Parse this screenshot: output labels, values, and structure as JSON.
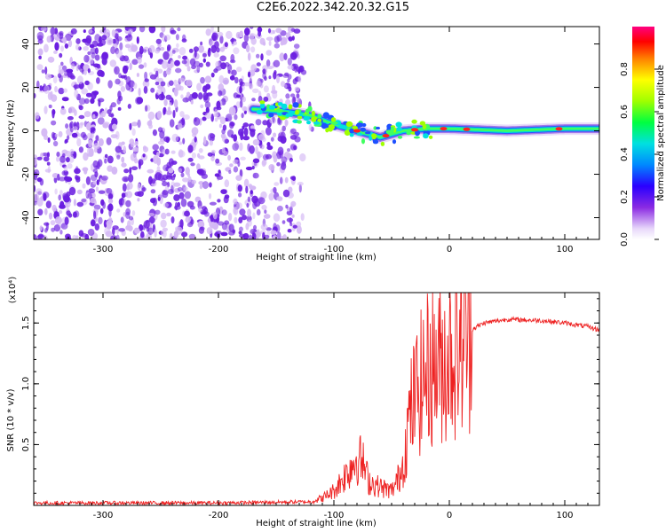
{
  "title": "C2E6.2022.342.20.32.G15",
  "colors": {
    "snr_line": "#ee2222",
    "axis": "#000000",
    "dots_primary": "#6a1de0",
    "dots_light": "#d4b8f5"
  },
  "chart_data": [
    {
      "type": "heatmap",
      "xlabel": "Height of straight line (km)",
      "ylabel": "Frequency (Hz)",
      "xlim": [
        -360,
        130
      ],
      "ylim": [
        -50,
        48
      ],
      "xticks": [
        -300,
        -200,
        -100,
        0,
        100
      ],
      "yticks": [
        -40,
        -20,
        0,
        20,
        40
      ],
      "colorbar": {
        "label": "Normalized spectral amplitude",
        "range": [
          0.0,
          1.0
        ],
        "ticks": [
          0.0,
          0.2,
          0.4,
          0.6,
          0.8
        ],
        "tick_labels": [
          "0.0",
          "0.2",
          "0.4",
          "0.6",
          "0.8"
        ],
        "colormap": "rainbow"
      },
      "signal_track": [
        {
          "x": -170,
          "y": 10
        },
        {
          "x": -145,
          "y": 9
        },
        {
          "x": -120,
          "y": 7
        },
        {
          "x": -100,
          "y": 3
        },
        {
          "x": -80,
          "y": 0
        },
        {
          "x": -60,
          "y": -3
        },
        {
          "x": -40,
          "y": 0
        },
        {
          "x": -20,
          "y": 1
        },
        {
          "x": 0,
          "y": 1
        },
        {
          "x": 50,
          "y": 0
        },
        {
          "x": 100,
          "y": 1
        },
        {
          "x": 130,
          "y": 1
        }
      ],
      "noise_region_x": [
        -360,
        -130
      ]
    },
    {
      "type": "line",
      "xlabel": "Height of straight line (km)",
      "ylabel": "SNR (10 * v/v)",
      "scale_label": "(x10⁴)",
      "xlim": [
        -360,
        130
      ],
      "ylim": [
        0,
        1.75
      ],
      "xticks": [
        -300,
        -200,
        -100,
        0,
        100
      ],
      "yticks": [
        0.5,
        1.0,
        1.5
      ],
      "ytick_labels": [
        "0.5",
        "1.0",
        "1.5"
      ],
      "series": [
        {
          "values_x": [
            -360,
            -300,
            -200,
            -120,
            -110,
            -100,
            -90,
            -80,
            -75,
            -70,
            -60,
            -50,
            -45,
            -40,
            -35,
            -30,
            -25,
            -20,
            -15,
            -10,
            -5,
            0,
            10,
            20,
            30,
            50,
            80,
            100,
            120,
            130
          ],
          "values_y": [
            0.02,
            0.02,
            0.02,
            0.03,
            0.06,
            0.12,
            0.25,
            0.4,
            0.35,
            0.2,
            0.15,
            0.12,
            0.2,
            0.35,
            0.7,
            0.9,
            1.0,
            1.1,
            1.15,
            1.15,
            1.2,
            1.25,
            1.35,
            1.45,
            1.5,
            1.53,
            1.52,
            1.5,
            1.47,
            1.44
          ]
        }
      ]
    }
  ]
}
